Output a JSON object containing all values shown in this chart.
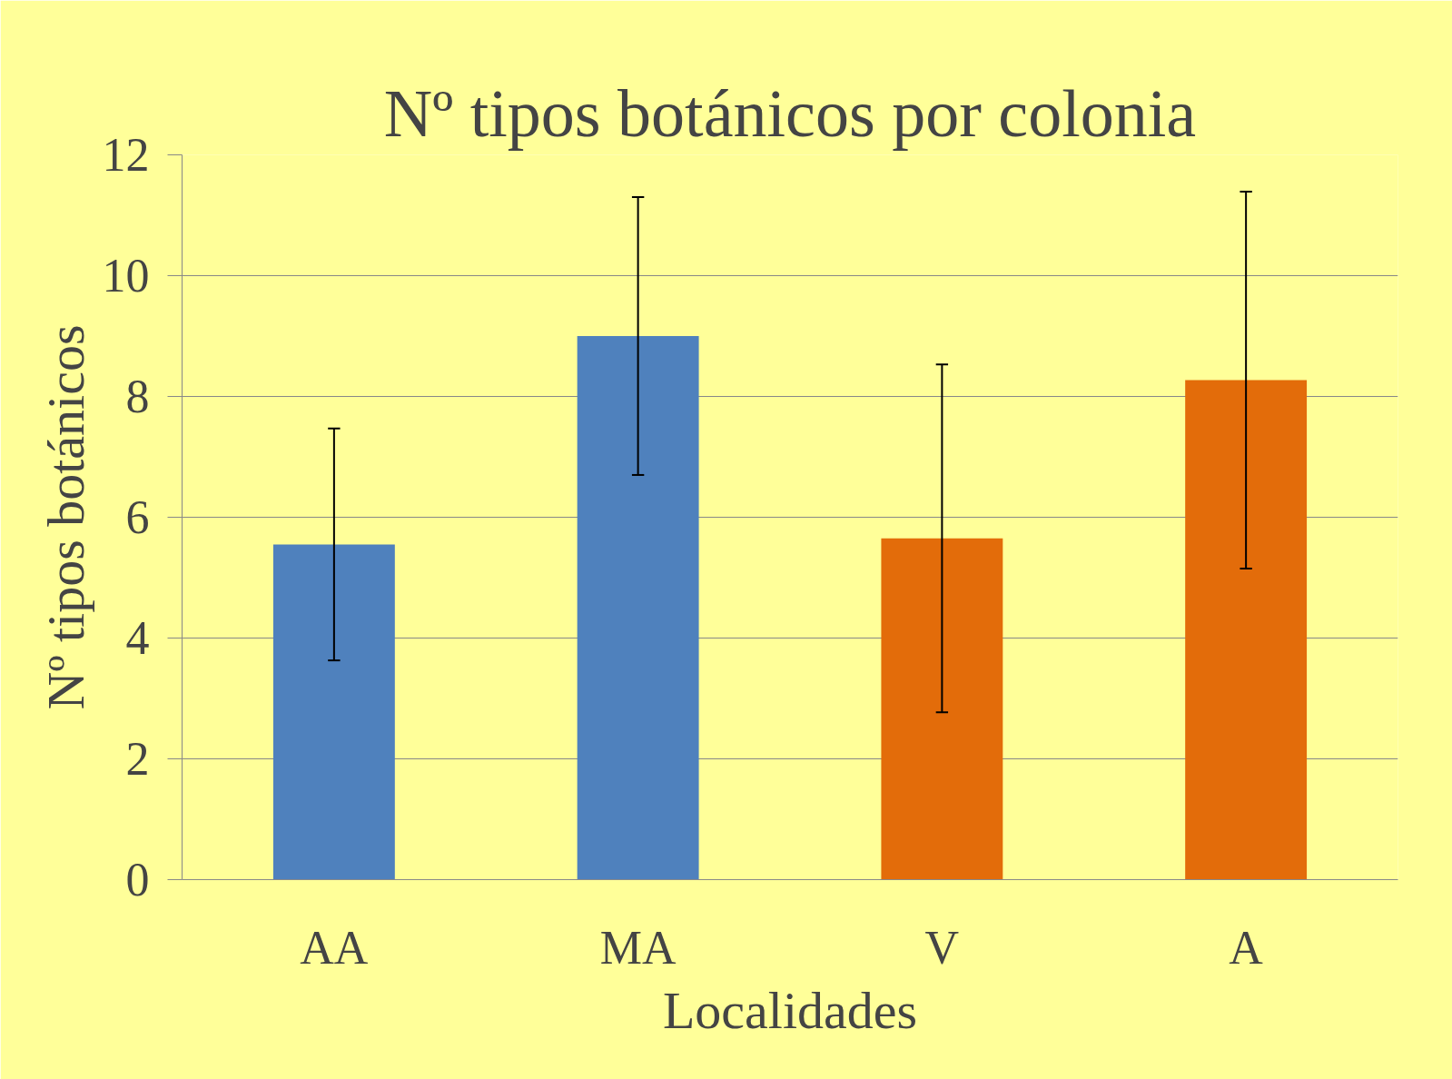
{
  "chart_data": {
    "type": "bar",
    "title": "Nº tipos botánicos por colonia",
    "xlabel": "Localidades",
    "ylabel": "Nº tipos botánicos",
    "categories": [
      "AA",
      "MA",
      "V",
      "A"
    ],
    "values": [
      5.55,
      9.0,
      5.65,
      8.27
    ],
    "colors": [
      "#4f81bd",
      "#4f81bd",
      "#e36c0a",
      "#e36c0a"
    ],
    "errors": [
      1.92,
      2.3,
      2.88,
      3.12
    ],
    "ylim": [
      0,
      12
    ],
    "yticks": [
      0,
      2,
      4,
      6,
      8,
      10,
      12
    ],
    "grid": "y"
  }
}
